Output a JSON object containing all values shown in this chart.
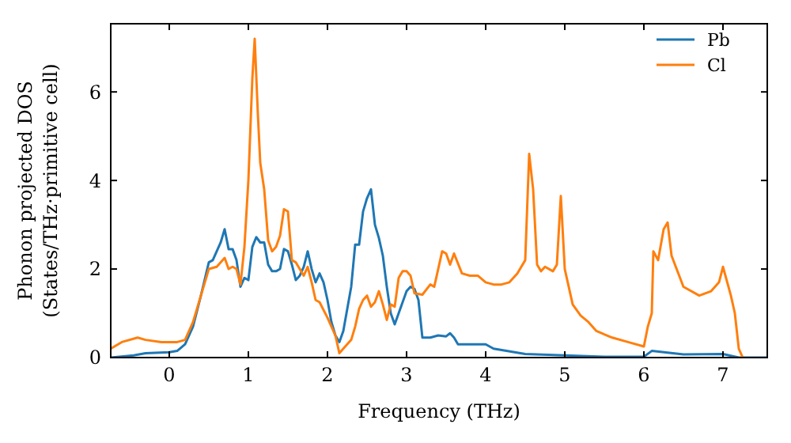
{
  "chart_data": {
    "type": "line",
    "xlabel": "Frequency (THz)",
    "ylabel": "Phonon projected DOS\n(States/THz·primitive cell)",
    "xlim": [
      -0.74,
      7.56
    ],
    "ylim": [
      0,
      7.54
    ],
    "xticks": [
      0,
      1,
      2,
      3,
      4,
      5,
      6,
      7
    ],
    "yticks": [
      0,
      2,
      4,
      6
    ],
    "grid": false,
    "legend": "top right",
    "marker": "none",
    "line_style": "solid",
    "series": [
      {
        "name": "Pb",
        "color": "#1f77b4",
        "x": [
          -0.74,
          -0.45,
          -0.3,
          0,
          0.1,
          0.2,
          0.3,
          0.4,
          0.5,
          0.55,
          0.65,
          0.7,
          0.75,
          0.8,
          0.85,
          0.9,
          0.95,
          1.0,
          1.05,
          1.1,
          1.15,
          1.2,
          1.25,
          1.3,
          1.35,
          1.4,
          1.45,
          1.5,
          1.55,
          1.6,
          1.65,
          1.7,
          1.75,
          1.8,
          1.85,
          1.9,
          1.95,
          2.0,
          2.05,
          2.1,
          2.15,
          2.2,
          2.25,
          2.3,
          2.35,
          2.4,
          2.45,
          2.5,
          2.55,
          2.6,
          2.65,
          2.7,
          2.75,
          2.8,
          2.85,
          2.9,
          3.0,
          3.05,
          3.1,
          3.15,
          3.2,
          3.3,
          3.4,
          3.5,
          3.55,
          3.6,
          3.65,
          3.75,
          4.0,
          4.1,
          4.5,
          5.0,
          5.5,
          6.0,
          6.1,
          6.5,
          7.0,
          7.2,
          7.56
        ],
        "values": [
          0,
          0.05,
          0.1,
          0.12,
          0.15,
          0.3,
          0.7,
          1.4,
          2.15,
          2.2,
          2.6,
          2.9,
          2.45,
          2.45,
          2.2,
          1.6,
          1.8,
          1.75,
          2.5,
          2.72,
          2.6,
          2.6,
          2.1,
          1.95,
          1.95,
          2.0,
          2.45,
          2.4,
          2.1,
          1.75,
          1.85,
          2.05,
          2.4,
          2.0,
          1.7,
          1.9,
          1.7,
          1.3,
          0.8,
          0.5,
          0.35,
          0.6,
          1.1,
          1.6,
          2.55,
          2.55,
          3.3,
          3.6,
          3.8,
          3.0,
          2.7,
          2.3,
          1.6,
          1.0,
          0.75,
          1.0,
          1.5,
          1.6,
          1.55,
          1.3,
          0.45,
          0.45,
          0.5,
          0.48,
          0.55,
          0.45,
          0.3,
          0.3,
          0.3,
          0.2,
          0.08,
          0.05,
          0.02,
          0.02,
          0.15,
          0.07,
          0.08,
          0,
          0
        ]
      },
      {
        "name": "Cl",
        "color": "#ff7f0e",
        "x": [
          -0.74,
          -0.6,
          -0.4,
          -0.3,
          -0.1,
          0.1,
          0.2,
          0.3,
          0.4,
          0.5,
          0.6,
          0.7,
          0.75,
          0.8,
          0.85,
          0.9,
          0.95,
          1.0,
          1.05,
          1.08,
          1.12,
          1.15,
          1.2,
          1.25,
          1.3,
          1.35,
          1.4,
          1.45,
          1.5,
          1.55,
          1.6,
          1.7,
          1.75,
          1.8,
          1.85,
          1.9,
          2.0,
          2.1,
          2.15,
          2.2,
          2.3,
          2.35,
          2.4,
          2.45,
          2.5,
          2.55,
          2.6,
          2.65,
          2.7,
          2.75,
          2.8,
          2.85,
          2.9,
          2.95,
          3.0,
          3.05,
          3.1,
          3.2,
          3.3,
          3.35,
          3.45,
          3.5,
          3.55,
          3.6,
          3.7,
          3.8,
          3.9,
          4.0,
          4.1,
          4.2,
          4.3,
          4.4,
          4.5,
          4.55,
          4.6,
          4.65,
          4.7,
          4.75,
          4.85,
          4.9,
          4.95,
          5.0,
          5.1,
          5.2,
          5.3,
          5.4,
          5.6,
          5.8,
          6.0,
          6.05,
          6.1,
          6.12,
          6.18,
          6.25,
          6.3,
          6.35,
          6.5,
          6.7,
          6.85,
          6.95,
          7.0,
          7.1,
          7.15,
          7.2,
          7.25
        ],
        "values": [
          0.2,
          0.35,
          0.45,
          0.4,
          0.35,
          0.35,
          0.4,
          0.8,
          1.4,
          2.0,
          2.05,
          2.25,
          2.0,
          2.05,
          2.0,
          1.65,
          2.5,
          4.0,
          6.3,
          7.2,
          5.5,
          4.4,
          3.8,
          2.65,
          2.4,
          2.5,
          2.75,
          3.35,
          3.3,
          2.2,
          2.15,
          1.85,
          2.05,
          1.7,
          1.3,
          1.25,
          0.9,
          0.5,
          0.1,
          0.2,
          0.4,
          0.7,
          1.1,
          1.3,
          1.4,
          1.15,
          1.25,
          1.5,
          1.2,
          0.85,
          1.2,
          1.15,
          1.8,
          1.95,
          1.95,
          1.85,
          1.45,
          1.42,
          1.65,
          1.6,
          2.4,
          2.35,
          2.1,
          2.35,
          1.9,
          1.85,
          1.85,
          1.7,
          1.65,
          1.65,
          1.7,
          1.9,
          2.2,
          4.6,
          3.8,
          2.1,
          1.95,
          2.05,
          1.95,
          2.1,
          3.65,
          2.0,
          1.2,
          0.95,
          0.8,
          0.6,
          0.45,
          0.35,
          0.25,
          0.7,
          1.0,
          2.4,
          2.2,
          2.9,
          3.05,
          2.3,
          1.6,
          1.4,
          1.5,
          1.7,
          2.05,
          1.4,
          1.0,
          0.2,
          0
        ]
      }
    ]
  }
}
